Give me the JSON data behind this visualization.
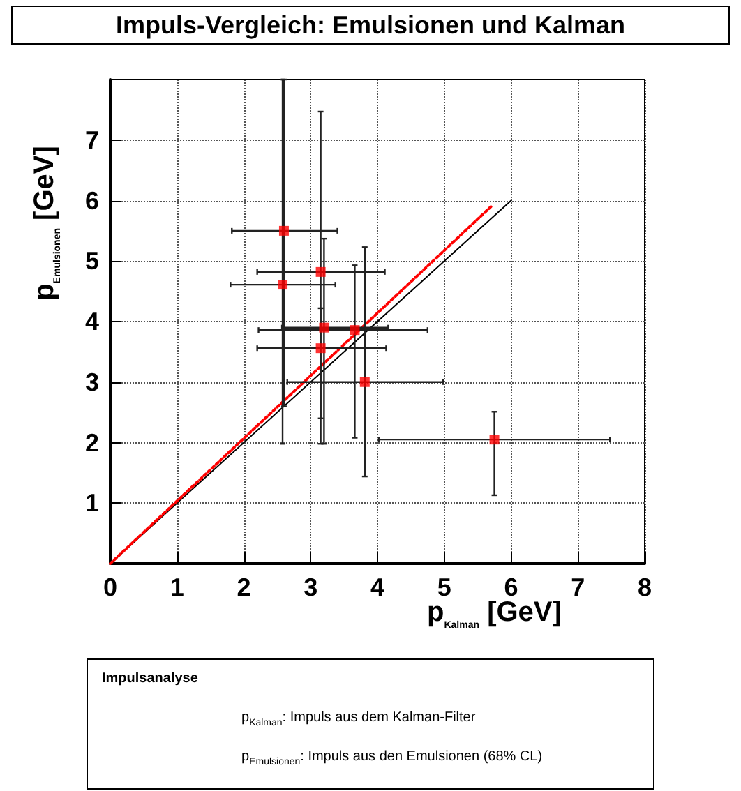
{
  "chart_data": {
    "type": "scatter",
    "title": "Impuls-Vergleich: Emulsionen und Kalman",
    "xlabel": "p$_{Kalman}$ [GeV]",
    "ylabel": "p$_{Emulsionen}$ [GeV]",
    "xlim": [
      0,
      8
    ],
    "ylim": [
      0,
      8
    ],
    "xticks": [
      0,
      1,
      2,
      3,
      4,
      5,
      6,
      7,
      8
    ],
    "yticks": [
      1,
      2,
      3,
      4,
      5,
      6,
      7
    ],
    "grid": true,
    "marker": "square",
    "annotations": [
      "Impulsanalyse",
      "p$_{Kalman}$: Impuls aus dem Kalman-Filter",
      "p$_{Emulsionen}$: Impuls aus den Emulsionen (68% CL)"
    ],
    "series": [
      {
        "type": "scatter",
        "color": "#ff0000",
        "x": [
          2.6,
          2.58,
          3.15,
          3.2,
          3.66,
          3.15,
          3.81,
          5.75
        ],
        "values": [
          5.5,
          4.61,
          4.82,
          3.9,
          3.86,
          3.56,
          3.0,
          2.05
        ],
        "errors": [
          [
            2.6,
            8
          ],
          [
            1.98,
            8
          ],
          [
            2.4,
            7.47
          ],
          [
            1.98,
            5.37
          ],
          [
            2.08,
            4.93
          ],
          [
            1.98,
            4.22
          ],
          [
            1.44,
            5.23
          ],
          [
            1.13,
            2.51
          ]
        ],
        "xerrors": [
          [
            1.82,
            3.4
          ],
          [
            1.8,
            3.37
          ],
          [
            2.2,
            4.11
          ],
          [
            2.57,
            4.16
          ],
          [
            2.22,
            4.75
          ],
          [
            2.2,
            4.13
          ],
          [
            2.65,
            4.98
          ],
          [
            4.02,
            7.48
          ]
        ]
      },
      {
        "type": "line",
        "color": "#000000",
        "x": [
          0,
          6
        ],
        "values": [
          0,
          6
        ],
        "marker": "none",
        "line_style": "solid"
      },
      {
        "type": "line",
        "color": "#ff0000",
        "x": [
          0,
          5.7
        ],
        "values": [
          0,
          5.9
        ],
        "marker": "none",
        "line_style": "dotted"
      }
    ]
  }
}
